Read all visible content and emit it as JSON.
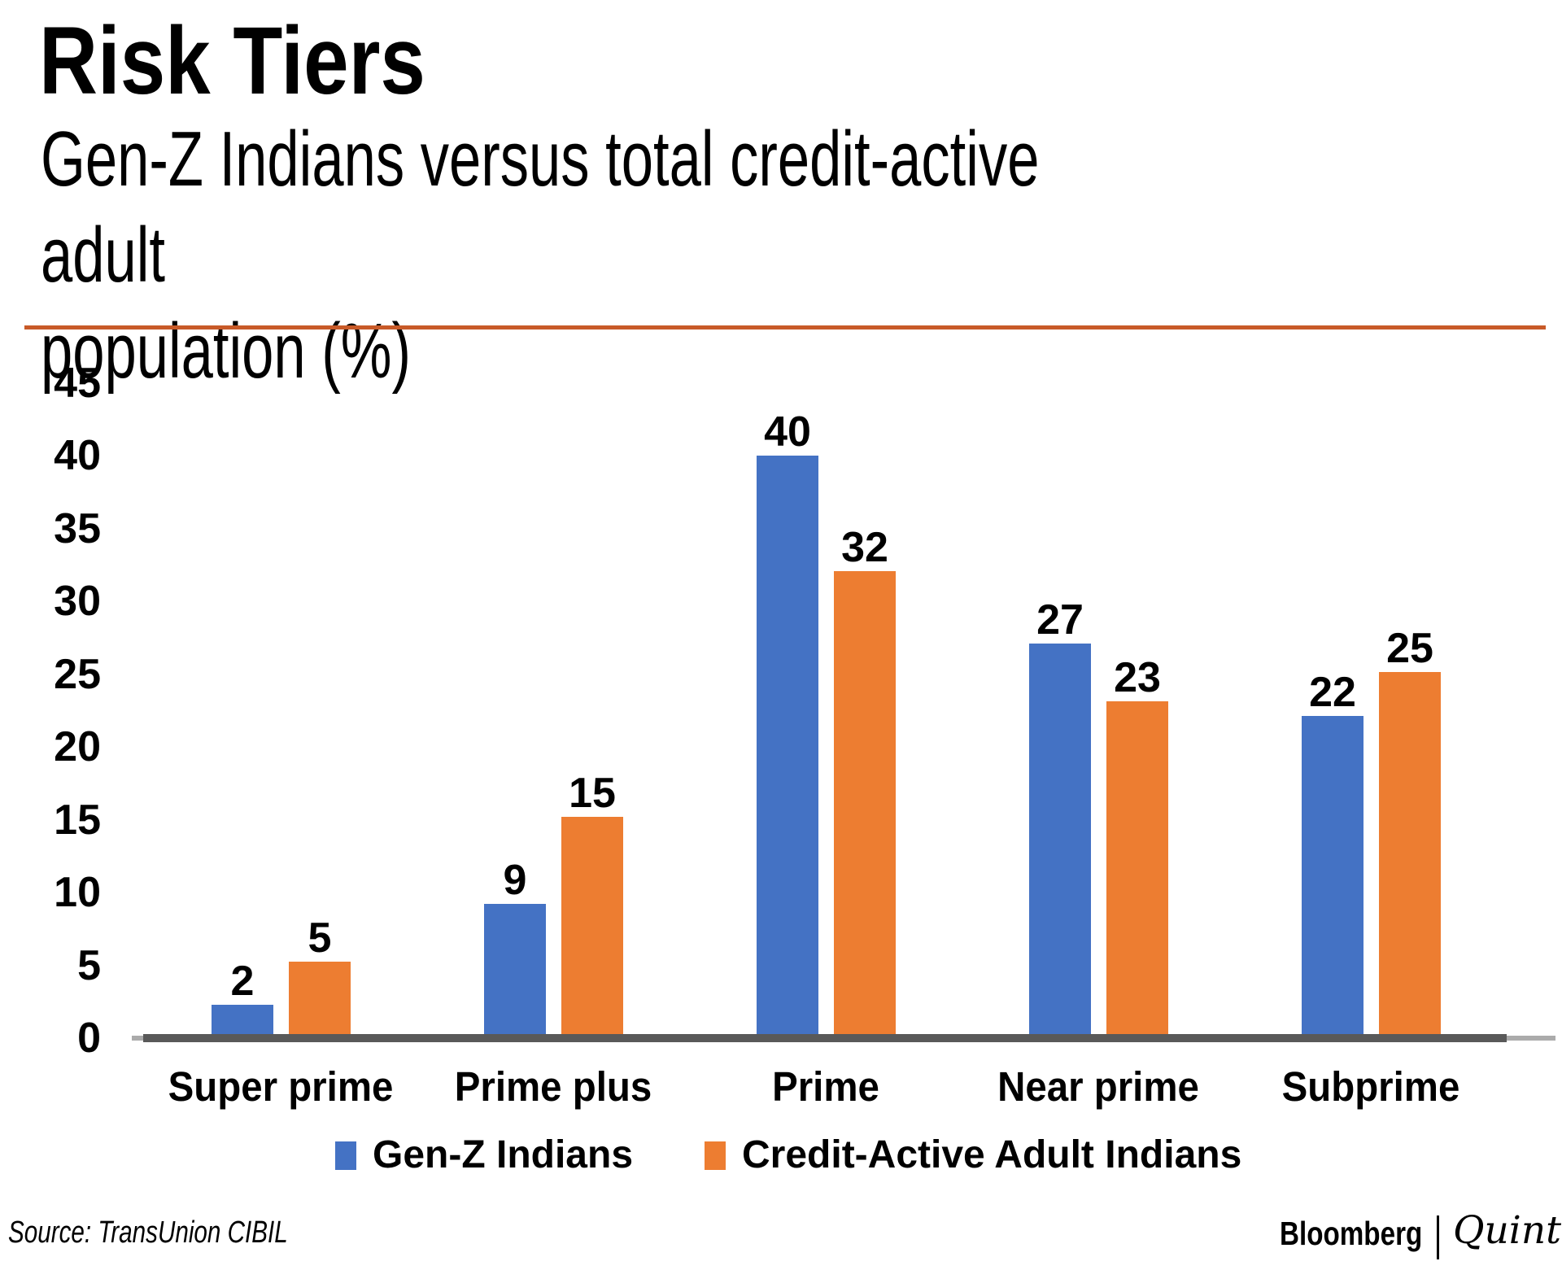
{
  "header": {
    "title": "Risk Tiers",
    "subtitle": "Gen-Z Indians versus total credit-active adult\npopulation (%)"
  },
  "chart_data": {
    "type": "bar",
    "title": "Risk Tiers",
    "subtitle": "Gen-Z Indians versus total credit-active adult population (%)",
    "unit": "percent",
    "categories": [
      "Super prime",
      "Prime plus",
      "Prime",
      "Near prime",
      "Subprime"
    ],
    "series": [
      {
        "name": "Gen-Z Indians",
        "color": "#4472C4",
        "values": [
          2,
          9,
          40,
          27,
          22
        ]
      },
      {
        "name": "Credit-Active Adult Indians",
        "color": "#ED7D31",
        "values": [
          5,
          15,
          32,
          23,
          25
        ]
      }
    ],
    "ylim": [
      0,
      45
    ],
    "yticks": [
      0,
      5,
      10,
      15,
      20,
      25,
      30,
      35,
      40,
      45
    ],
    "grid": false,
    "legend_position": "bottom",
    "value_labels": true
  },
  "footer": {
    "source": "Source: TransUnion CIBIL",
    "brand": {
      "name1": "Bloomberg",
      "name2": "Quint"
    }
  },
  "colors": {
    "rule": "#C85A28",
    "axis": "#595959",
    "axis_light": "#ABABAB",
    "series1": "#4472C4",
    "series2": "#ED7D31",
    "text": "#000000"
  }
}
